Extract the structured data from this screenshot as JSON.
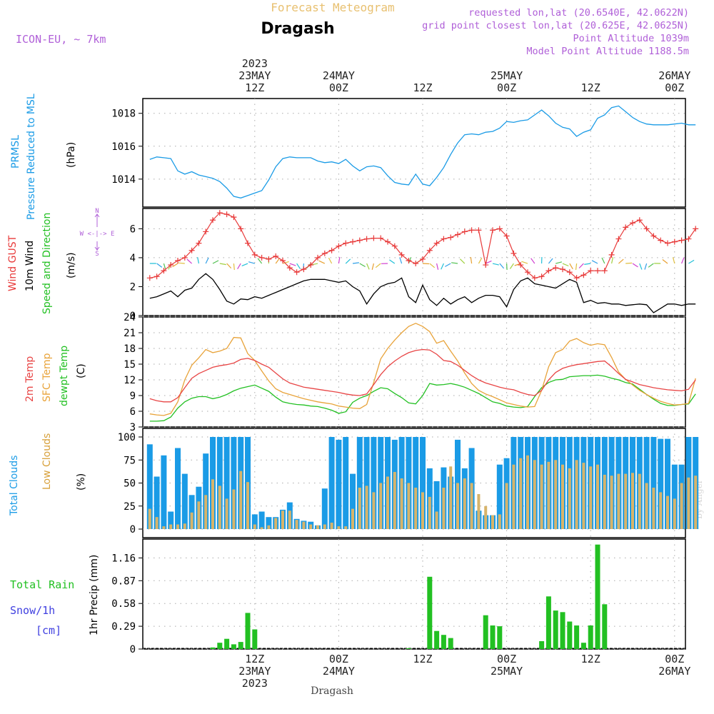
{
  "header": {
    "title": "Forecast Meteogram",
    "location": "Dragash",
    "model": "ICON-EU, ~ 7km",
    "requested": "requested lon,lat (20.6540E, 42.0622N)",
    "grid_point": "grid point closest lon,lat (20.625E, 42.0625N)",
    "point_altitude": "Point Altitude 1039m",
    "model_altitude": "Model Point Altitude 1188.5m",
    "watermark": "by Angel",
    "footer_location": "Dragash"
  },
  "time_axis": {
    "top_labels": [
      {
        "lines": [
          "2023",
          "23MAY",
          "12Z"
        ],
        "t": 15
      },
      {
        "lines": [
          "24MAY",
          "00Z"
        ],
        "t": 27
      },
      {
        "lines": [
          "12Z"
        ],
        "t": 39
      },
      {
        "lines": [
          "25MAY",
          "00Z"
        ],
        "t": 51
      },
      {
        "lines": [
          "12Z"
        ],
        "t": 63
      },
      {
        "lines": [
          "26MAY",
          "00Z"
        ],
        "t": 75
      }
    ],
    "bottom_labels": [
      {
        "lines": [
          "12Z",
          "23MAY",
          "2023"
        ],
        "t": 15
      },
      {
        "lines": [
          "00Z",
          "24MAY"
        ],
        "t": 27
      },
      {
        "lines": [
          "12Z"
        ],
        "t": 39
      },
      {
        "lines": [
          "00Z",
          "25MAY"
        ],
        "t": 51
      },
      {
        "lines": [
          "12Z"
        ],
        "t": 63
      },
      {
        "lines": [
          "00Z",
          "26MAY"
        ],
        "t": 75
      }
    ]
  },
  "panel_labels": {
    "pressure": {
      "name": "PRMSL",
      "desc": "Pressure Reduced to MSL",
      "unit": "(hPa)"
    },
    "wind": {
      "gust": "Wind GUST",
      "wind": "10m Wind",
      "speed": "Speed and Direction",
      "unit": "(m/s)",
      "compass_n": "N",
      "compass_s": "S",
      "compass_we": "W <-|-> E"
    },
    "temp": {
      "t2m": "2m Temp",
      "sfc": "SFC Temp",
      "dewpt": "dewpt Temp",
      "unit": "(C)"
    },
    "clouds": {
      "total": "Total Clouds",
      "low": "Low Clouds",
      "unit": "(%)"
    },
    "precip": {
      "rain": "Total  Rain",
      "snow": "Snow/1h",
      "snow_unit": "[cm]",
      "unit": "1hr Precip (mm)"
    }
  },
  "colors": {
    "pressure": "#1a9be6",
    "gust": "#e83a3a",
    "wind": "#000000",
    "temp2m": "#e84545",
    "sfc": "#e8a33a",
    "dewpt": "#22c022",
    "total_cloud": "#1a9be6",
    "low_cloud": "#d7b46a",
    "rain": "#22c022",
    "snow": "#4040e0",
    "label_purple": "#b060d8",
    "title_gold": "#e8c070"
  },
  "chart_data": [
    {
      "type": "line",
      "title": "PRMSL Pressure Reduced to MSL",
      "ylabel": "(hPa)",
      "ylim": [
        1012.3,
        1018.9
      ],
      "yticks": [
        1014,
        1016,
        1018
      ],
      "x_unit": "hour index from 23MAY 00Z",
      "x": [
        0,
        1,
        2,
        3,
        4,
        5,
        6,
        7,
        8,
        9,
        10,
        11,
        12,
        13,
        14,
        15,
        16,
        17,
        18,
        19,
        20,
        21,
        22,
        23,
        24,
        25,
        26,
        27,
        28,
        29,
        30,
        31,
        32,
        33,
        34,
        35,
        36,
        37,
        38,
        39,
        40,
        41,
        42,
        43,
        44,
        45,
        46,
        47,
        48,
        49,
        50,
        51,
        52,
        53,
        54,
        55,
        56,
        57,
        58,
        59,
        60,
        61,
        62,
        63,
        64,
        65,
        66,
        67,
        68,
        69,
        70,
        71,
        72,
        73,
        74,
        75,
        76,
        77,
        78
      ],
      "series": [
        {
          "name": "PRMSL",
          "values": [
            1015.2,
            1015.35,
            1015.3,
            1015.25,
            1014.5,
            1014.3,
            1014.45,
            1014.25,
            1014.15,
            1014.05,
            1013.85,
            1013.45,
            1012.95,
            1012.85,
            1013.0,
            1013.15,
            1013.3,
            1013.95,
            1014.75,
            1015.25,
            1015.35,
            1015.3,
            1015.3,
            1015.3,
            1015.1,
            1015.0,
            1015.05,
            1014.95,
            1015.2,
            1014.8,
            1014.5,
            1014.75,
            1014.8,
            1014.7,
            1014.2,
            1013.8,
            1013.7,
            1013.65,
            1014.3,
            1013.7,
            1013.6,
            1014.1,
            1014.7,
            1015.5,
            1016.2,
            1016.7,
            1016.75,
            1016.7,
            1016.85,
            1016.9,
            1017.1,
            1017.5,
            1017.45,
            1017.55,
            1017.6,
            1017.9,
            1018.2,
            1017.85,
            1017.4,
            1017.15,
            1017.05,
            1016.6,
            1016.85,
            1017.0,
            1017.7,
            1017.9,
            1018.35,
            1018.45,
            1018.1,
            1017.75,
            1017.5,
            1017.35,
            1017.3,
            1017.3,
            1017.3,
            1017.35,
            1017.4,
            1017.3,
            1017.3
          ]
        }
      ]
    },
    {
      "type": "line",
      "title": "Wind GUST / 10m Wind Speed and Direction",
      "ylabel": "(m/s)",
      "ylim": [
        0,
        7.4
      ],
      "yticks": [
        0,
        2,
        4,
        6
      ],
      "x_unit": "hour index from 23MAY 00Z",
      "series": [
        {
          "name": "Wind GUST",
          "values": [
            2.6,
            2.7,
            3.1,
            3.5,
            3.8,
            4.0,
            4.5,
            5.0,
            5.8,
            6.6,
            7.1,
            7.0,
            6.8,
            6.0,
            5.0,
            4.2,
            4.0,
            3.9,
            4.1,
            3.8,
            3.3,
            3.0,
            3.2,
            3.5,
            4.0,
            4.3,
            4.5,
            4.8,
            5.0,
            5.1,
            5.2,
            5.3,
            5.35,
            5.35,
            5.1,
            4.8,
            4.2,
            3.8,
            3.6,
            3.9,
            4.5,
            5.0,
            5.3,
            5.4,
            5.6,
            5.8,
            5.9,
            5.9,
            3.5,
            5.9,
            6.0,
            5.5,
            4.3,
            3.5,
            3.0,
            2.6,
            2.7,
            3.1,
            3.3,
            3.2,
            3.0,
            2.6,
            2.8,
            3.1,
            3.1,
            3.1,
            4.2,
            5.3,
            6.1,
            6.4,
            6.6,
            6.0,
            5.5,
            5.2,
            5.0,
            5.1,
            5.2,
            5.3,
            6.0
          ]
        },
        {
          "name": "10m Wind",
          "values": [
            1.2,
            1.3,
            1.5,
            1.7,
            1.3,
            1.75,
            1.9,
            2.5,
            2.9,
            2.5,
            1.8,
            1.0,
            0.8,
            1.15,
            1.1,
            1.3,
            1.2,
            1.4,
            1.6,
            1.8,
            2.0,
            2.2,
            2.4,
            2.5,
            2.5,
            2.5,
            2.4,
            2.3,
            2.4,
            2.0,
            1.7,
            0.8,
            1.5,
            2.0,
            2.2,
            2.3,
            2.6,
            1.3,
            0.9,
            2.1,
            1.1,
            0.7,
            1.2,
            0.8,
            1.1,
            1.3,
            0.9,
            1.2,
            1.4,
            1.4,
            1.3,
            0.6,
            1.8,
            2.4,
            2.6,
            2.2,
            2.1,
            2.0,
            1.9,
            2.2,
            2.5,
            2.3,
            0.9,
            1.05,
            0.85,
            0.9,
            0.8,
            0.8,
            0.7,
            0.75,
            0.8,
            0.75,
            0.2,
            0.5,
            0.8,
            0.8,
            0.7,
            0.8,
            0.8
          ]
        }
      ]
    },
    {
      "type": "line",
      "title": "2m Temp / SFC Temp / dewpt Temp",
      "ylabel": "(C)",
      "ylim": [
        3,
        24
      ],
      "yticks": [
        3,
        6,
        9,
        12,
        15,
        18,
        21,
        24
      ],
      "x_unit": "hour index from 23MAY 00Z",
      "series": [
        {
          "name": "2m Temp",
          "values": [
            8.4,
            8.0,
            7.8,
            7.8,
            8.6,
            10.5,
            12.3,
            13.2,
            13.8,
            14.4,
            14.7,
            14.9,
            15.2,
            15.9,
            16.1,
            15.7,
            15.0,
            14.4,
            13.3,
            12.2,
            11.4,
            11.0,
            10.6,
            10.4,
            10.2,
            10.0,
            9.8,
            9.6,
            9.3,
            9.1,
            9.0,
            9.3,
            11.1,
            13.0,
            14.5,
            15.6,
            16.5,
            17.2,
            17.6,
            17.8,
            17.7,
            16.9,
            15.7,
            15.5,
            14.8,
            13.8,
            12.8,
            12.0,
            11.4,
            11.0,
            10.6,
            10.3,
            10.1,
            9.6,
            9.2,
            9.0,
            10.0,
            12.0,
            13.4,
            14.2,
            14.6,
            14.9,
            15.1,
            15.3,
            15.5,
            15.6,
            14.5,
            13.2,
            12.1,
            11.6,
            11.1,
            10.8,
            10.5,
            10.3,
            10.1,
            10.0,
            9.9,
            10.2,
            12.0
          ]
        },
        {
          "name": "SFC Temp",
          "values": [
            5.5,
            5.3,
            5.2,
            5.6,
            7.8,
            12.0,
            14.8,
            16.2,
            17.8,
            17.2,
            17.5,
            18.0,
            20.1,
            20.0,
            17.0,
            15.7,
            13.7,
            11.8,
            10.3,
            9.6,
            9.2,
            8.8,
            8.4,
            8.1,
            7.8,
            7.6,
            7.4,
            7.0,
            6.8,
            6.6,
            6.5,
            7.3,
            11.5,
            16.0,
            18.0,
            19.6,
            21.0,
            22.2,
            22.8,
            22.2,
            21.2,
            19.0,
            19.5,
            17.5,
            15.6,
            13.3,
            11.3,
            10.0,
            9.3,
            8.8,
            8.2,
            7.6,
            7.3,
            7.0,
            6.8,
            6.9,
            10.0,
            14.5,
            17.2,
            17.8,
            19.4,
            19.9,
            19.1,
            18.6,
            18.9,
            18.7,
            16.3,
            13.5,
            12.1,
            11.0,
            10.0,
            9.2,
            8.5,
            7.9,
            7.5,
            7.2,
            7.3,
            7.5,
            12.3
          ]
        },
        {
          "name": "dewpt Temp",
          "values": [
            4.1,
            4.1,
            4.2,
            4.9,
            6.6,
            7.8,
            8.5,
            8.8,
            8.8,
            8.4,
            8.7,
            9.2,
            9.9,
            10.4,
            10.7,
            11.0,
            10.4,
            9.8,
            8.7,
            7.8,
            7.5,
            7.3,
            7.2,
            7.0,
            6.9,
            6.6,
            6.2,
            5.6,
            5.9,
            7.7,
            8.5,
            9.0,
            9.8,
            10.5,
            10.3,
            9.4,
            8.6,
            7.6,
            7.4,
            9.0,
            11.3,
            11.0,
            11.1,
            11.3,
            11.0,
            10.6,
            10.0,
            9.4,
            8.6,
            7.8,
            7.5,
            7.0,
            6.8,
            6.7,
            6.9,
            8.8,
            10.5,
            11.5,
            12.0,
            12.1,
            12.6,
            12.7,
            12.8,
            12.8,
            12.9,
            12.7,
            12.3,
            12.0,
            11.5,
            11.2,
            10.2,
            9.2,
            8.3,
            7.5,
            7.1,
            7.1,
            7.3,
            7.4,
            9.3
          ]
        }
      ]
    },
    {
      "type": "bar",
      "title": "Total Clouds / Low Clouds",
      "ylabel": "(%)",
      "ylim": [
        0,
        100
      ],
      "yticks": [
        0,
        25,
        50,
        75,
        100
      ],
      "x_unit": "hour index from 23MAY 00Z",
      "series": [
        {
          "name": "Total Clouds",
          "values": [
            92,
            57,
            80,
            19,
            88,
            60,
            37,
            46,
            82,
            100,
            100,
            100,
            100,
            100,
            100,
            16,
            19,
            13,
            13,
            21,
            29,
            11,
            9,
            8,
            4,
            44,
            100,
            97,
            100,
            60,
            100,
            100,
            100,
            100,
            100,
            97,
            100,
            100,
            100,
            100,
            66,
            52,
            67,
            57,
            97,
            66,
            88,
            20,
            15,
            15,
            70,
            77,
            100,
            100,
            100,
            100,
            100,
            100,
            100,
            100,
            100,
            100,
            100,
            100,
            100,
            100,
            100,
            100,
            100,
            100,
            100,
            100,
            100,
            98,
            98,
            70,
            70,
            100,
            100
          ]
        },
        {
          "name": "Low Clouds",
          "values": [
            22,
            13,
            3,
            5,
            5,
            6,
            18,
            30,
            37,
            54,
            47,
            33,
            43,
            63,
            51,
            5,
            2,
            4,
            12,
            20,
            20,
            10,
            8,
            5,
            4,
            5,
            7,
            3,
            3,
            22,
            45,
            47,
            40,
            50,
            57,
            62,
            55,
            50,
            45,
            40,
            35,
            19,
            45,
            68,
            50,
            55,
            50,
            38,
            25,
            15,
            16,
            50,
            70,
            77,
            80,
            75,
            70,
            73,
            75,
            70,
            66,
            75,
            72,
            68,
            70,
            59,
            58,
            60,
            60,
            61,
            60,
            50,
            45,
            40,
            36,
            33,
            50,
            56,
            58
          ]
        }
      ]
    },
    {
      "type": "bar",
      "title": "1hr Precip",
      "ylabel": "1hr Precip (mm)",
      "ylim": [
        0,
        1.4
      ],
      "yticks": [
        0,
        0.29,
        0.58,
        0.87,
        1.16
      ],
      "x_unit": "hour index from 23MAY 00Z",
      "series": [
        {
          "name": "Total Rain",
          "values": [
            0,
            0,
            0,
            0,
            0,
            0,
            0,
            0,
            0,
            0.02,
            0.08,
            0.13,
            0.06,
            0.09,
            0.46,
            0.25,
            0,
            0,
            0,
            0,
            0,
            0,
            0,
            0,
            0,
            0,
            0,
            0,
            0,
            0,
            0,
            0,
            0,
            0,
            0,
            0,
            0,
            0.01,
            0,
            0,
            0.92,
            0.23,
            0.18,
            0.14,
            0,
            0,
            0,
            0,
            0.43,
            0.3,
            0.29,
            0,
            0,
            0,
            0,
            0,
            0.1,
            0.67,
            0.49,
            0.47,
            0.35,
            0.3,
            0.08,
            0.3,
            1.33,
            0.57,
            0,
            0,
            0,
            0,
            0,
            0,
            0,
            0,
            0,
            0,
            0,
            0,
            0
          ]
        },
        {
          "name": "Snow/1h",
          "values": []
        }
      ]
    }
  ]
}
